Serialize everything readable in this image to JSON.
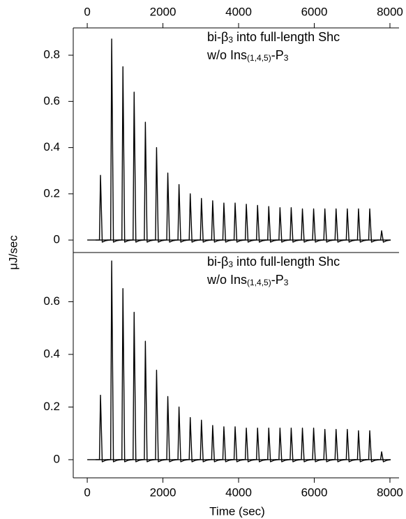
{
  "chart_data": [
    {
      "type": "line",
      "annotation_lines": [
        [
          "bi-β",
          "3",
          " into full-length Shc"
        ],
        [
          "w/o Ins",
          "(1,4,5)",
          "-P",
          "3"
        ]
      ],
      "ylabel": "μJ/sec",
      "x": [
        350,
        646,
        943,
        1239,
        1536,
        1832,
        2129,
        2425,
        2722,
        3018,
        3315,
        3611,
        3908,
        4204,
        4501,
        4797,
        5094,
        5390,
        5687,
        5983,
        6280,
        6576,
        6873,
        7169,
        7466,
        7780
      ],
      "series": [
        {
          "color": "#000000",
          "values": [
            0.28,
            0.87,
            0.75,
            0.64,
            0.51,
            0.4,
            0.29,
            0.24,
            0.2,
            0.18,
            0.17,
            0.16,
            0.16,
            0.155,
            0.15,
            0.145,
            0.14,
            0.14,
            0.135,
            0.135,
            0.135,
            0.135,
            0.135,
            0.135,
            0.135,
            0.04
          ]
        }
      ],
      "xlim": [
        -370,
        8240
      ],
      "xticks": [
        0,
        2000,
        4000,
        6000,
        8000
      ],
      "xaxis_position": "top",
      "ylim": [
        -0.054,
        0.918
      ],
      "yticks": [
        0,
        0.2,
        0.4,
        0.6,
        0.8
      ]
    },
    {
      "type": "line",
      "annotation_lines": [
        [
          "bi-β",
          "3",
          " into full-length Shc"
        ],
        [
          "w/o Ins",
          "(1,4,5)",
          "-P",
          "3"
        ]
      ],
      "xlabel": "Time (sec)",
      "x": [
        350,
        646,
        943,
        1239,
        1536,
        1832,
        2129,
        2425,
        2722,
        3018,
        3315,
        3611,
        3908,
        4204,
        4501,
        4797,
        5094,
        5390,
        5687,
        5983,
        6280,
        6576,
        6873,
        7169,
        7466,
        7780
      ],
      "series": [
        {
          "color": "#000000",
          "values": [
            0.245,
            0.755,
            0.65,
            0.56,
            0.45,
            0.34,
            0.24,
            0.2,
            0.16,
            0.15,
            0.13,
            0.125,
            0.125,
            0.12,
            0.12,
            0.12,
            0.12,
            0.12,
            0.12,
            0.12,
            0.115,
            0.115,
            0.115,
            0.11,
            0.11,
            0.03
          ]
        }
      ],
      "xlim": [
        -370,
        8240
      ],
      "xticks": [
        0,
        2000,
        4000,
        6000,
        8000
      ],
      "xaxis_position": "bottom",
      "ylim": [
        -0.069,
        0.787
      ],
      "yticks": [
        0,
        0.2,
        0.4,
        0.6
      ]
    }
  ]
}
